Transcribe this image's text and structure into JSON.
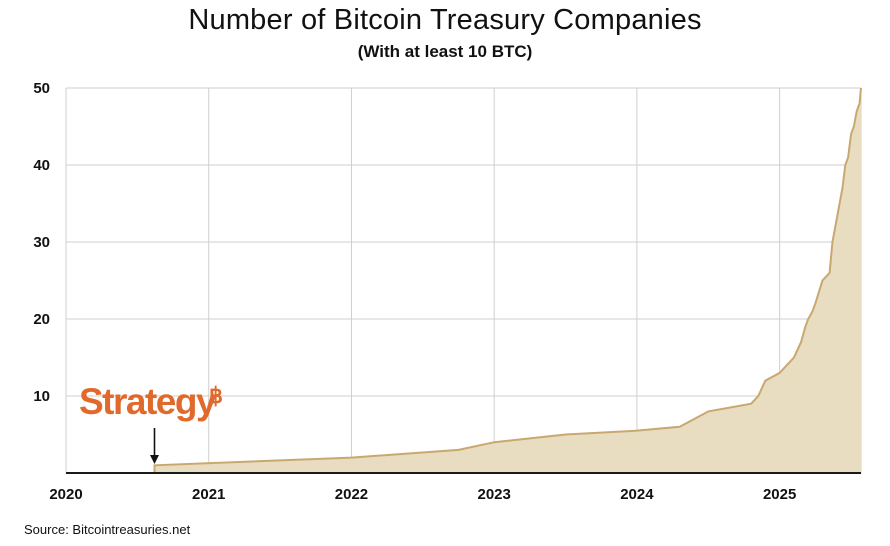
{
  "chart_data": {
    "type": "area",
    "title": "Number of Bitcoin Treasury Companies",
    "subtitle": "(With at least 10 BTC)",
    "xlabel": "",
    "ylabel": "",
    "x_ticks": [
      "2020",
      "2021",
      "2022",
      "2023",
      "2024",
      "2025"
    ],
    "y_ticks": [
      "10",
      "20",
      "30",
      "40",
      "50"
    ],
    "xlim": [
      2020.0,
      2025.57
    ],
    "ylim": [
      0,
      50
    ],
    "grid": true,
    "series": [
      {
        "name": "Bitcoin Treasury Companies",
        "x": [
          2020.0,
          2020.62,
          2020.62,
          2022.0,
          2022.75,
          2023.0,
          2023.5,
          2024.0,
          2024.3,
          2024.4,
          2024.5,
          2024.8,
          2024.85,
          2024.9,
          2025.0,
          2025.05,
          2025.1,
          2025.15,
          2025.18,
          2025.2,
          2025.23,
          2025.25,
          2025.3,
          2025.35,
          2025.37,
          2025.4,
          2025.42,
          2025.44,
          2025.46,
          2025.48,
          2025.5,
          2025.52,
          2025.54,
          2025.56,
          2025.57
        ],
        "values": [
          0,
          0,
          1,
          2,
          3,
          4,
          5,
          5.5,
          6,
          7,
          8,
          9,
          10,
          12,
          13,
          14,
          15,
          17,
          19,
          20,
          21,
          22,
          25,
          26,
          30,
          33,
          35,
          37,
          40,
          41,
          44,
          45,
          47,
          48,
          50
        ],
        "fill_color": "#e8dcc1",
        "line_color": "#c9a870"
      }
    ],
    "annotation": {
      "label": "Strategy",
      "symbol": "฿",
      "x": 2020.62,
      "color": "#e06a2c"
    }
  },
  "source": "Source: Bitcointreasuries.net"
}
